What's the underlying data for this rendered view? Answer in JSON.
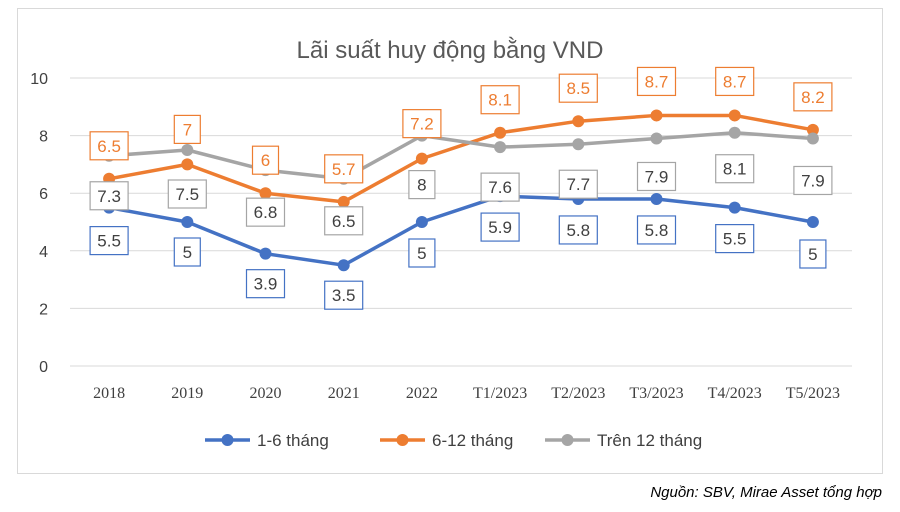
{
  "chart_data": {
    "type": "line",
    "title": "Lãi suất huy động bằng VND",
    "categories": [
      "2018",
      "2019",
      "2020",
      "2021",
      "2022",
      "T1/2023",
      "T2/2023",
      "T3/2023",
      "T4/2023",
      "T5/2023"
    ],
    "ylim": [
      0,
      10
    ],
    "yticks": [
      "0",
      "2",
      "4",
      "6",
      "8",
      "10"
    ],
    "grid": true,
    "legend_position": "bottom",
    "series": [
      {
        "name": "1-6 tháng",
        "color": "#4472c4",
        "values": [
          5.5,
          5,
          3.9,
          3.5,
          5,
          5.9,
          5.8,
          5.8,
          5.5,
          5
        ],
        "labels": [
          "5.5",
          "5",
          "3.9",
          "3.5",
          "5",
          "5.9",
          "5.8",
          "5.8",
          "5.5",
          "5"
        ]
      },
      {
        "name": "6-12 tháng",
        "color": "#ed7d31",
        "values": [
          6.5,
          7,
          6,
          5.7,
          7.2,
          8.1,
          8.5,
          8.7,
          8.7,
          8.2
        ],
        "labels": [
          "6.5",
          "7",
          "6",
          "5.7",
          "7.2",
          "8.1",
          "8.5",
          "8.7",
          "8.7",
          "8.2"
        ]
      },
      {
        "name": "Trên 12 tháng",
        "color": "#a5a5a5",
        "values": [
          7.3,
          7.5,
          6.8,
          6.5,
          8,
          7.6,
          7.7,
          7.9,
          8.1,
          7.9
        ],
        "labels": [
          "7.3",
          "7.5",
          "6.8",
          "6.5",
          "8",
          "7.6",
          "7.7",
          "7.9",
          "8.1",
          "7.9"
        ]
      }
    ]
  },
  "source": "Nguồn: SBV, Mirae Asset tổng hợp"
}
